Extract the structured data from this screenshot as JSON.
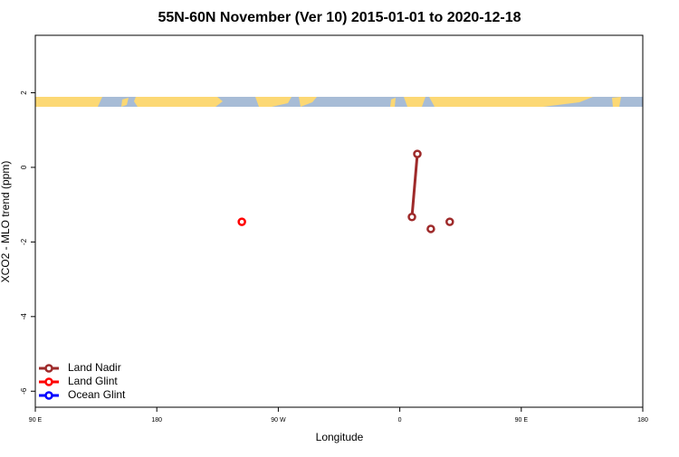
{
  "chart_data": {
    "type": "line",
    "title": "55N-60N November (Ver 10)   2015-01-01 to 2020-12-18",
    "x_label": "Longitude",
    "y_label": "XCO2 - MLO trend (ppm)",
    "xlim": [
      90,
      540
    ],
    "xticks": [
      {
        "value": 90,
        "label": "90 E"
      },
      {
        "value": 180,
        "label": "180"
      },
      {
        "value": 270,
        "label": "90 W"
      },
      {
        "value": 360,
        "label": "0"
      },
      {
        "value": 450,
        "label": "90 E"
      },
      {
        "value": 540,
        "label": "180"
      }
    ],
    "ylim": [
      -6.43,
      3.54
    ],
    "yticks": [
      2,
      0,
      -2,
      -4,
      -6
    ],
    "legend": "bottom-left",
    "series": [
      {
        "name": "Land Nadir",
        "color": "#9e2a2a",
        "x": [
          369,
          373,
          null,
          383,
          null,
          397
        ],
        "values": [
          -1.33,
          0.36,
          null,
          -1.65,
          null,
          -1.46
        ]
      },
      {
        "name": "Land Glint",
        "color": "#ff0000",
        "x": [
          243
        ],
        "values": [
          -1.46
        ]
      },
      {
        "name": "Ocean Glint",
        "color": "#0000ff",
        "x": [],
        "values": []
      }
    ]
  }
}
